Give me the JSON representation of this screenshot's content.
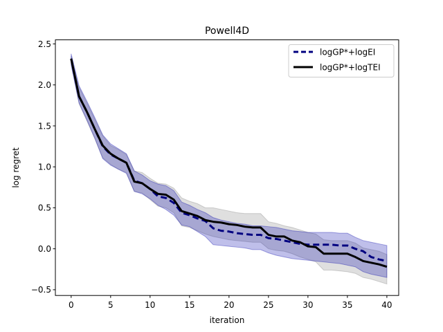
{
  "chart_data": {
    "type": "line",
    "title": "Powell4D",
    "xlabel": "iteration",
    "ylabel": "log regret",
    "xlim": [
      -2,
      41.5
    ],
    "ylim": [
      -0.57,
      2.55
    ],
    "xticks": [
      0,
      5,
      10,
      15,
      20,
      25,
      30,
      35,
      40
    ],
    "yticks": [
      -0.5,
      0.0,
      0.5,
      1.0,
      1.5,
      2.0,
      2.5
    ],
    "ytick_labels": [
      "−0.5",
      "0.0",
      "0.5",
      "1.0",
      "1.5",
      "2.0",
      "2.5"
    ],
    "grid": false,
    "legend_position": "top-right",
    "x": [
      0,
      1,
      2,
      3,
      4,
      5,
      6,
      7,
      8,
      9,
      10,
      11,
      12,
      13,
      14,
      15,
      16,
      17,
      18,
      19,
      20,
      21,
      22,
      23,
      24,
      25,
      26,
      27,
      28,
      29,
      30,
      31,
      32,
      33,
      34,
      35,
      36,
      37,
      38,
      39,
      40
    ],
    "series": [
      {
        "name": "logGP*+logEI",
        "color": "#000080",
        "band_color": "#0000aa",
        "line_style": "dashed",
        "values": [
          2.32,
          1.86,
          1.67,
          1.46,
          1.25,
          1.15,
          1.1,
          1.05,
          0.83,
          0.8,
          0.73,
          0.64,
          0.62,
          0.56,
          0.44,
          0.41,
          0.37,
          0.34,
          0.25,
          0.22,
          0.21,
          0.19,
          0.18,
          0.17,
          0.17,
          0.13,
          0.12,
          0.1,
          0.08,
          0.06,
          0.05,
          0.05,
          0.05,
          0.05,
          0.04,
          0.04,
          0.0,
          -0.03,
          -0.1,
          -0.13,
          -0.15
        ],
        "upper": [
          2.38,
          1.99,
          1.8,
          1.6,
          1.39,
          1.28,
          1.22,
          1.16,
          0.95,
          0.9,
          0.83,
          0.79,
          0.77,
          0.71,
          0.57,
          0.53,
          0.48,
          0.44,
          0.38,
          0.35,
          0.33,
          0.31,
          0.3,
          0.28,
          0.28,
          0.27,
          0.26,
          0.24,
          0.22,
          0.21,
          0.2,
          0.2,
          0.2,
          0.2,
          0.19,
          0.19,
          0.14,
          0.1,
          0.08,
          0.06,
          0.04
        ],
        "lower": [
          2.24,
          1.78,
          1.57,
          1.35,
          1.1,
          1.02,
          0.97,
          0.92,
          0.7,
          0.67,
          0.61,
          0.53,
          0.48,
          0.41,
          0.29,
          0.27,
          0.21,
          0.15,
          0.05,
          0.04,
          0.03,
          0.02,
          0.01,
          -0.01,
          -0.01,
          -0.05,
          -0.08,
          -0.1,
          -0.12,
          -0.13,
          -0.14,
          -0.15,
          -0.16,
          -0.17,
          -0.18,
          -0.2,
          -0.22,
          -0.28,
          -0.31,
          -0.33,
          -0.35
        ]
      },
      {
        "name": "logGP*+logTEI",
        "color": "#000000",
        "band_color": "#808080",
        "line_style": "solid",
        "values": [
          2.32,
          1.86,
          1.67,
          1.46,
          1.26,
          1.16,
          1.1,
          1.05,
          0.82,
          0.8,
          0.73,
          0.67,
          0.66,
          0.6,
          0.46,
          0.43,
          0.4,
          0.35,
          0.33,
          0.32,
          0.3,
          0.29,
          0.27,
          0.26,
          0.26,
          0.17,
          0.15,
          0.15,
          0.1,
          0.08,
          0.03,
          0.02,
          -0.06,
          -0.06,
          -0.06,
          -0.06,
          -0.1,
          -0.15,
          -0.17,
          -0.19,
          -0.22
        ],
        "upper": [
          2.35,
          1.97,
          1.78,
          1.58,
          1.38,
          1.26,
          1.21,
          1.15,
          0.95,
          0.93,
          0.86,
          0.8,
          0.79,
          0.74,
          0.62,
          0.58,
          0.55,
          0.5,
          0.5,
          0.48,
          0.46,
          0.44,
          0.43,
          0.43,
          0.43,
          0.33,
          0.31,
          0.28,
          0.26,
          0.23,
          0.2,
          0.18,
          0.11,
          0.1,
          0.1,
          0.1,
          0.07,
          0.01,
          -0.01,
          -0.03,
          -0.07
        ],
        "lower": [
          2.26,
          1.77,
          1.56,
          1.34,
          1.11,
          1.03,
          0.97,
          0.93,
          0.7,
          0.68,
          0.6,
          0.52,
          0.5,
          0.44,
          0.28,
          0.26,
          0.22,
          0.18,
          0.15,
          0.13,
          0.11,
          0.1,
          0.09,
          0.08,
          0.08,
          0.0,
          -0.02,
          -0.03,
          -0.06,
          -0.1,
          -0.13,
          -0.16,
          -0.26,
          -0.26,
          -0.27,
          -0.28,
          -0.3,
          -0.35,
          -0.37,
          -0.4,
          -0.43
        ]
      }
    ]
  }
}
